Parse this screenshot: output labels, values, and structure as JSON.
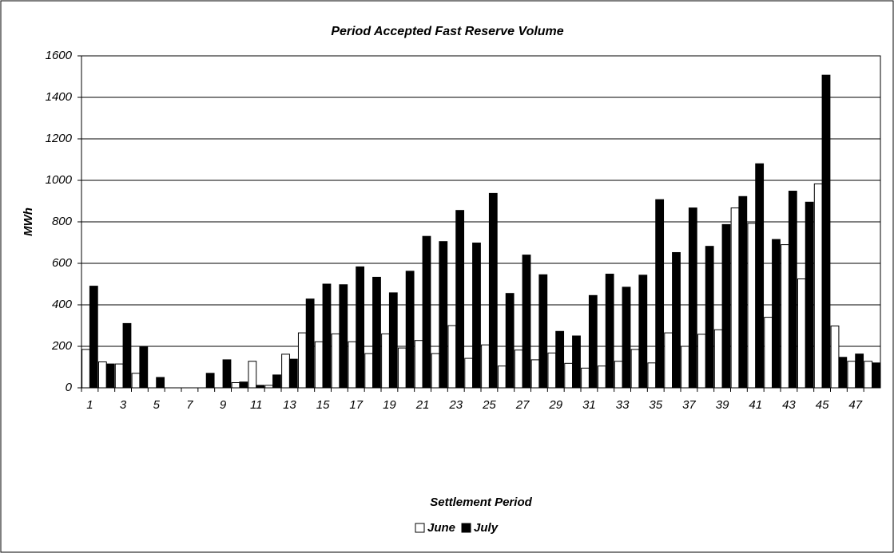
{
  "chart_data": {
    "type": "bar",
    "title": "Period Accepted Fast Reserve Volume",
    "x_label": "Settlement Period",
    "y_label": "MWh",
    "categories": [
      "1",
      null,
      "3",
      null,
      "5",
      null,
      "7",
      null,
      "9",
      null,
      "11",
      null,
      "13",
      null,
      "15",
      null,
      "17",
      null,
      "19",
      null,
      "21",
      null,
      "23",
      null,
      "25",
      null,
      "27",
      null,
      "29",
      null,
      "31",
      null,
      "33",
      null,
      "35",
      null,
      "37",
      null,
      "39",
      null,
      "41",
      null,
      "43",
      null,
      "45",
      null,
      "47",
      null
    ],
    "series": [
      {
        "name": "June",
        "color": "#ffffff",
        "values": [
          185,
          125,
          115,
          70,
          0,
          0,
          0,
          0,
          0,
          25,
          128,
          12,
          162,
          265,
          222,
          260,
          222,
          165,
          260,
          192,
          228,
          165,
          300,
          142,
          207,
          105,
          182,
          135,
          168,
          118,
          95,
          105,
          128,
          185,
          120,
          265,
          200,
          258,
          280,
          867,
          793,
          340,
          690,
          525,
          983,
          298,
          128,
          128
        ]
      },
      {
        "name": "July",
        "color": "#000000",
        "values": [
          490,
          115,
          310,
          200,
          50,
          0,
          0,
          70,
          135,
          28,
          12,
          62,
          138,
          428,
          500,
          497,
          583,
          533,
          458,
          562,
          730,
          705,
          855,
          698,
          937,
          455,
          640,
          545,
          272,
          250,
          445,
          548,
          485,
          543,
          907,
          652,
          867,
          682,
          787,
          922,
          1080,
          715,
          948,
          895,
          1507,
          147,
          163,
          120
        ]
      }
    ],
    "ylim": [
      0,
      1600
    ],
    "yticks": [
      0,
      200,
      400,
      600,
      800,
      1000,
      1200,
      1400,
      1600
    ],
    "grid": true,
    "legend": "bottom"
  }
}
